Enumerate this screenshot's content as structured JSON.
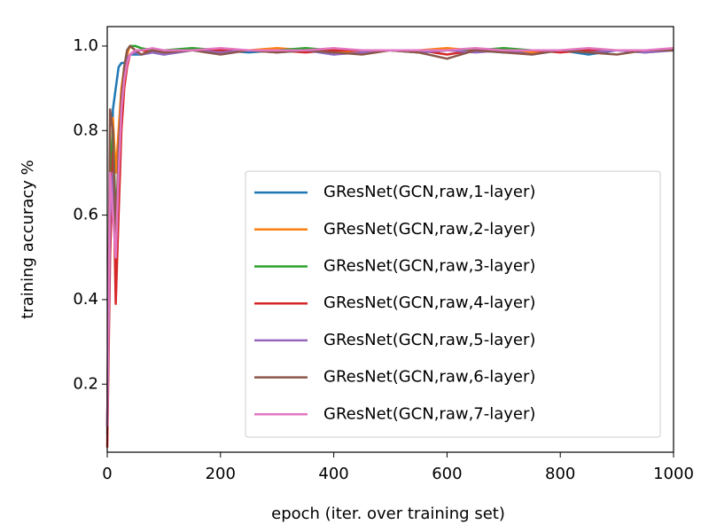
{
  "chart_data": {
    "type": "line",
    "xlabel": "epoch (iter. over training set)",
    "ylabel": "training accuracy %",
    "x": [
      0,
      5,
      10,
      15,
      20,
      25,
      30,
      35,
      40,
      50,
      60,
      80,
      100,
      150,
      200,
      250,
      300,
      350,
      400,
      450,
      500,
      550,
      600,
      650,
      700,
      750,
      800,
      850,
      900,
      950,
      1000
    ],
    "series": [
      {
        "name": "GResNet(GCN,raw,1-layer)",
        "color": "#1f77b4",
        "values": [
          0.08,
          0.55,
          0.85,
          0.9,
          0.95,
          0.96,
          0.96,
          0.97,
          0.98,
          0.98,
          0.98,
          0.985,
          0.98,
          0.99,
          0.99,
          0.985,
          0.99,
          0.99,
          0.98,
          0.99,
          0.99,
          0.985,
          0.99,
          0.99,
          0.985,
          0.99,
          0.99,
          0.98,
          0.99,
          0.985,
          0.99
        ]
      },
      {
        "name": "GResNet(GCN,raw,2-layer)",
        "color": "#ff7f0e",
        "values": [
          0.1,
          0.6,
          0.83,
          0.7,
          0.8,
          0.9,
          0.95,
          0.98,
          1.0,
          0.99,
          0.99,
          0.99,
          0.985,
          0.99,
          0.99,
          0.99,
          0.995,
          0.99,
          0.985,
          0.99,
          0.99,
          0.99,
          0.995,
          0.99,
          0.99,
          0.985,
          0.99,
          0.99,
          0.99,
          0.99,
          0.99
        ]
      },
      {
        "name": "GResNet(GCN,raw,3-layer)",
        "color": "#2ca02c",
        "values": [
          0.1,
          0.7,
          0.8,
          0.6,
          0.7,
          0.85,
          0.95,
          0.99,
          1.0,
          1.0,
          0.995,
          0.99,
          0.99,
          0.995,
          0.99,
          0.99,
          0.99,
          0.995,
          0.99,
          0.99,
          0.99,
          0.985,
          0.99,
          0.99,
          0.995,
          0.99,
          0.99,
          0.99,
          0.99,
          0.99,
          0.99
        ]
      },
      {
        "name": "GResNet(GCN,raw,4-layer)",
        "color": "#d62728",
        "values": [
          0.05,
          0.5,
          0.75,
          0.39,
          0.6,
          0.8,
          0.9,
          0.95,
          0.98,
          0.99,
          0.99,
          0.985,
          0.99,
          0.99,
          0.99,
          0.99,
          0.99,
          0.985,
          0.99,
          0.99,
          0.99,
          0.99,
          0.98,
          0.99,
          0.99,
          0.99,
          0.985,
          0.99,
          0.99,
          0.99,
          0.99
        ]
      },
      {
        "name": "GResNet(GCN,raw,5-layer)",
        "color": "#9467bd",
        "values": [
          0.1,
          0.6,
          0.7,
          0.5,
          0.7,
          0.85,
          0.93,
          0.97,
          0.98,
          0.985,
          0.98,
          0.985,
          0.98,
          0.99,
          0.985,
          0.99,
          0.985,
          0.99,
          0.98,
          0.985,
          0.99,
          0.985,
          0.99,
          0.985,
          0.99,
          0.98,
          0.99,
          0.985,
          0.99,
          0.985,
          0.99
        ]
      },
      {
        "name": "GResNet(GCN,raw,6-layer)",
        "color": "#8c564b",
        "values": [
          0.1,
          0.85,
          0.8,
          0.55,
          0.75,
          0.88,
          0.95,
          0.99,
          1.0,
          0.99,
          0.98,
          0.99,
          0.985,
          0.99,
          0.98,
          0.99,
          0.985,
          0.99,
          0.985,
          0.98,
          0.99,
          0.985,
          0.97,
          0.99,
          0.985,
          0.98,
          0.99,
          0.985,
          0.98,
          0.99,
          0.99
        ]
      },
      {
        "name": "GResNet(GCN,raw,7-layer)",
        "color": "#e377c2",
        "values": [
          0.1,
          0.7,
          0.6,
          0.5,
          0.7,
          0.85,
          0.92,
          0.96,
          0.98,
          0.99,
          0.99,
          0.995,
          0.99,
          0.99,
          0.995,
          0.99,
          0.99,
          0.99,
          0.995,
          0.99,
          0.99,
          0.99,
          0.99,
          0.995,
          0.99,
          0.99,
          0.99,
          0.995,
          0.99,
          0.99,
          0.995
        ]
      }
    ],
    "xlim": [
      0,
      1000
    ],
    "xticks": [
      0,
      200,
      400,
      600,
      800,
      1000
    ],
    "ylim": [
      0.039,
      1.046
    ],
    "yticks": [
      0.2,
      0.4,
      0.6,
      0.8,
      {
        "value": 1,
        "label": "1.0"
      }
    ],
    "legend": "lower right",
    "grid": false
  }
}
